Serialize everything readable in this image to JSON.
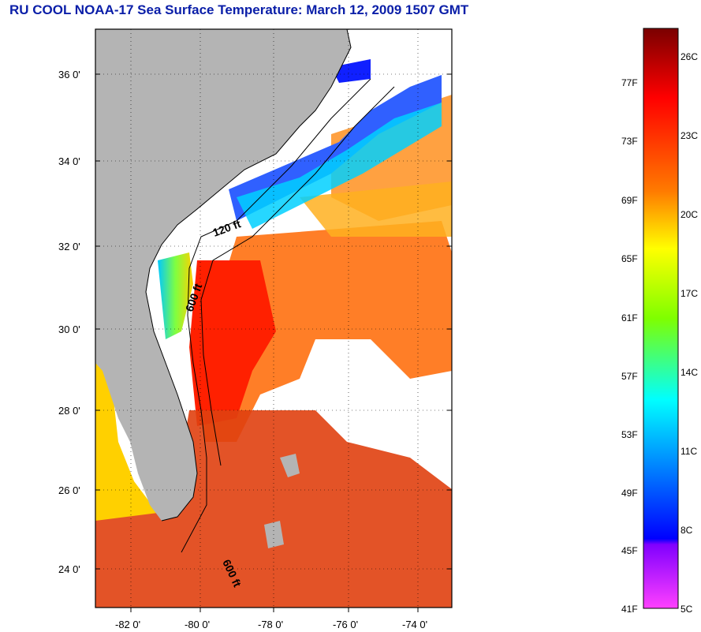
{
  "title": "RU COOL  NOAA-17  Sea Surface Temperature:  March 12, 2009 1507 GMT",
  "map": {
    "lat_labels": [
      "36 0'",
      "34 0'",
      "32 0'",
      "30 0'",
      "28 0'",
      "26 0'",
      "24 0'"
    ],
    "lon_labels": [
      "-82 0'",
      "-80 0'",
      "-78 0'",
      "-76 0'",
      "-74 0'"
    ],
    "contour_labels": [
      "120 ft",
      "600 ft",
      "600 ft"
    ],
    "land_color": "#b4b4b4",
    "cloud_color": "#ffffff"
  },
  "colorbar": {
    "fahrenheit_labels": [
      "77F",
      "73F",
      "69F",
      "65F",
      "61F",
      "57F",
      "53F",
      "49F",
      "45F",
      "41F"
    ],
    "celsius_labels": [
      "26C",
      "23C",
      "20C",
      "17C",
      "14C",
      "11C",
      "8C",
      "5C"
    ],
    "colors": [
      "#7a0000",
      "#ff0000",
      "#ff7a00",
      "#ffff00",
      "#7fff00",
      "#00ffff",
      "#007fff",
      "#0000ff",
      "#8000ff",
      "#ff40ff"
    ]
  }
}
